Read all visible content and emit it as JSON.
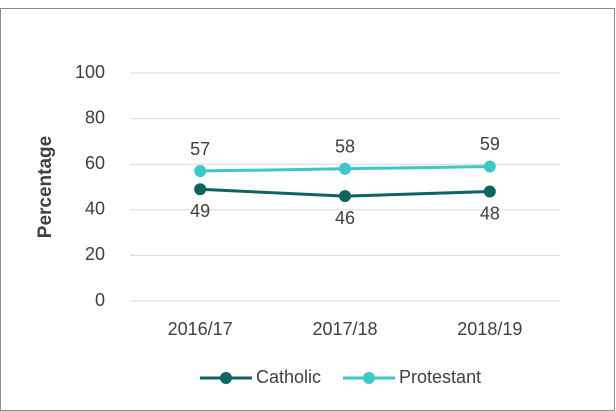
{
  "chart_data": {
    "type": "line",
    "categories": [
      "2016/17",
      "2017/18",
      "2018/19"
    ],
    "series": [
      {
        "name": "Catholic",
        "color": "#0e6363",
        "values": [
          49,
          46,
          48
        ]
      },
      {
        "name": "Protestant",
        "color": "#3cc8c8",
        "values": [
          57,
          58,
          59
        ]
      }
    ],
    "ylabel": "Percentage",
    "ylim": [
      0,
      100
    ],
    "yticks": [
      0,
      20,
      40,
      60,
      80,
      100
    ],
    "grid": true,
    "legend": "bottom"
  }
}
